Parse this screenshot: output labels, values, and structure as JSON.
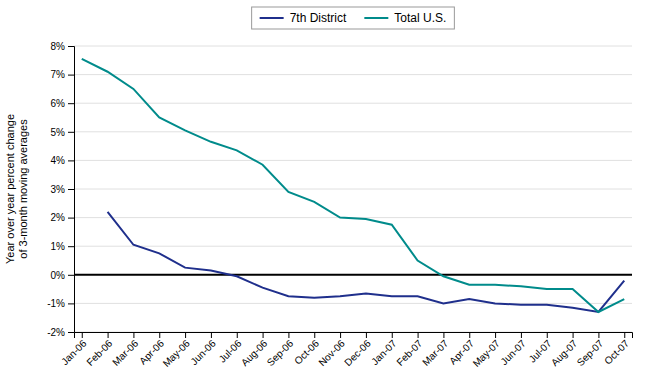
{
  "chart_data": {
    "type": "line",
    "categories": [
      "Jan-06",
      "Feb-06",
      "Mar-06",
      "Apr-06",
      "May-06",
      "Jun-06",
      "Jul-06",
      "Aug-06",
      "Sep-06",
      "Oct-06",
      "Nov-06",
      "Dec-06",
      "Jan-07",
      "Feb-07",
      "Mar-07",
      "Apr-07",
      "May-07",
      "Jun-07",
      "Jul-07",
      "Aug-07",
      "Sep-07",
      "Oct-07"
    ],
    "series": [
      {
        "name": "7th District",
        "color": "#1f2f8c",
        "values": [
          null,
          2.2,
          1.05,
          0.75,
          0.25,
          0.15,
          -0.05,
          -0.45,
          -0.75,
          -0.8,
          -0.75,
          -0.65,
          -0.75,
          -0.75,
          -1.0,
          -0.85,
          -1.0,
          -1.05,
          -1.05,
          -1.15,
          -1.3,
          -0.2
        ]
      },
      {
        "name": "Total U.S.",
        "color": "#008b8b",
        "values": [
          7.55,
          7.1,
          6.5,
          5.5,
          5.05,
          4.65,
          4.35,
          3.85,
          2.9,
          2.55,
          2.0,
          1.95,
          1.75,
          0.5,
          -0.05,
          -0.35,
          -0.35,
          -0.4,
          -0.5,
          -0.5,
          -1.3,
          -0.85
        ]
      }
    ],
    "y_label": "Year over year percent change\nof 3-month moving averages",
    "ylim": [
      -2,
      8
    ],
    "yticks": [
      {
        "value": -2,
        "label": "-2%"
      },
      {
        "value": -1,
        "label": "-1%"
      },
      {
        "value": 0,
        "label": "0%"
      },
      {
        "value": 1,
        "label": "1%"
      },
      {
        "value": 2,
        "label": "2%"
      },
      {
        "value": 3,
        "label": "3%"
      },
      {
        "value": 4,
        "label": "4%"
      },
      {
        "value": 5,
        "label": "5%"
      },
      {
        "value": 6,
        "label": "6%"
      },
      {
        "value": 7,
        "label": "7%"
      },
      {
        "value": 8,
        "label": "8%"
      }
    ],
    "grid": true,
    "legend": "top"
  }
}
